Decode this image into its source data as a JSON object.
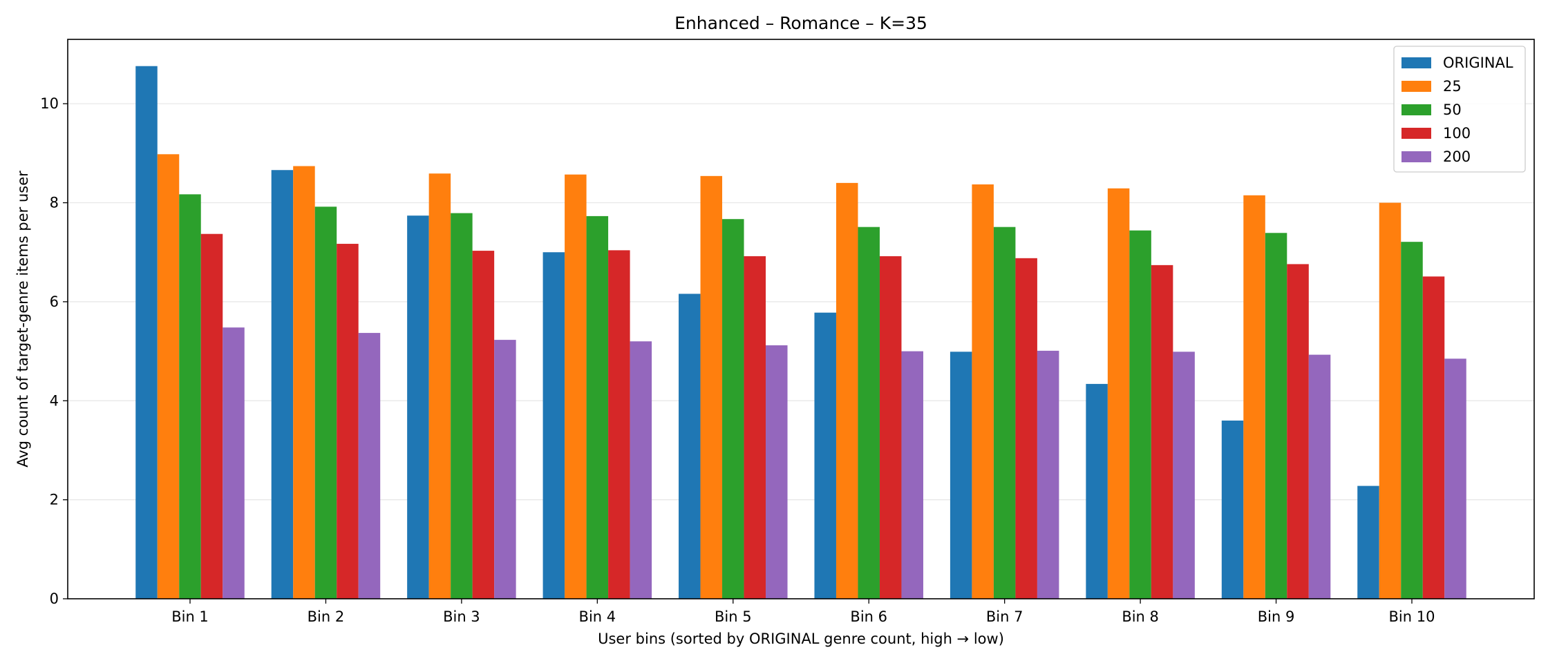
{
  "chart_data": {
    "type": "bar",
    "title": "Enhanced – Romance – K=35",
    "xlabel": "User bins (sorted by ORIGINAL genre count, high → low)",
    "ylabel": "Avg count of target-genre items per user",
    "ylim": [
      0,
      11.3
    ],
    "yticks": [
      0,
      2,
      4,
      6,
      8,
      10
    ],
    "grid": "horizontal",
    "legend_position": "top-right",
    "categories": [
      "Bin 1",
      "Bin 2",
      "Bin 3",
      "Bin 4",
      "Bin 5",
      "Bin 6",
      "Bin 7",
      "Bin 8",
      "Bin 9",
      "Bin 10"
    ],
    "series": [
      {
        "name": "ORIGINAL",
        "color": "#1f77b4",
        "values": [
          10.76,
          8.66,
          7.74,
          7.0,
          6.16,
          5.78,
          4.99,
          4.34,
          3.6,
          2.28
        ]
      },
      {
        "name": "25",
        "color": "#ff7f0e",
        "values": [
          8.98,
          8.74,
          8.59,
          8.57,
          8.54,
          8.4,
          8.37,
          8.29,
          8.15,
          8.0
        ]
      },
      {
        "name": "50",
        "color": "#2ca02c",
        "values": [
          8.17,
          7.92,
          7.79,
          7.73,
          7.67,
          7.51,
          7.51,
          7.44,
          7.39,
          7.21
        ]
      },
      {
        "name": "100",
        "color": "#d62728",
        "values": [
          7.37,
          7.17,
          7.03,
          7.04,
          6.92,
          6.92,
          6.88,
          6.74,
          6.76,
          6.51
        ]
      },
      {
        "name": "200",
        "color": "#9467bd",
        "values": [
          5.48,
          5.37,
          5.23,
          5.2,
          5.12,
          5.0,
          5.01,
          4.99,
          4.93,
          4.85
        ]
      }
    ]
  }
}
